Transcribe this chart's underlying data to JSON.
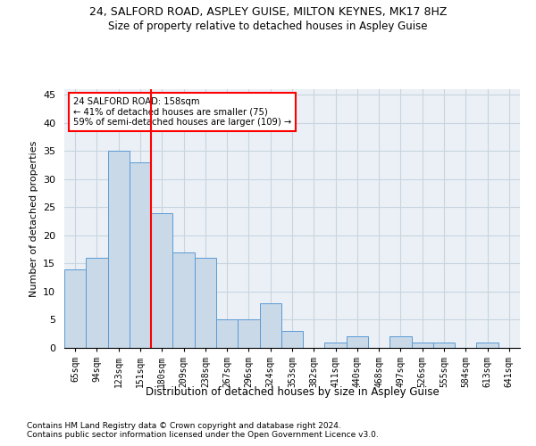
{
  "title1": "24, SALFORD ROAD, ASPLEY GUISE, MILTON KEYNES, MK17 8HZ",
  "title2": "Size of property relative to detached houses in Aspley Guise",
  "xlabel": "Distribution of detached houses by size in Aspley Guise",
  "ylabel": "Number of detached properties",
  "footnote1": "Contains HM Land Registry data © Crown copyright and database right 2024.",
  "footnote2": "Contains public sector information licensed under the Open Government Licence v3.0.",
  "bar_labels": [
    "65sqm",
    "94sqm",
    "123sqm",
    "151sqm",
    "180sqm",
    "209sqm",
    "238sqm",
    "267sqm",
    "296sqm",
    "324sqm",
    "353sqm",
    "382sqm",
    "411sqm",
    "440sqm",
    "468sqm",
    "497sqm",
    "526sqm",
    "555sqm",
    "584sqm",
    "613sqm",
    "641sqm"
  ],
  "bar_values": [
    14,
    16,
    35,
    33,
    24,
    17,
    16,
    5,
    5,
    8,
    3,
    0,
    1,
    2,
    0,
    2,
    1,
    1,
    0,
    1,
    0
  ],
  "bar_color": "#c9d9e8",
  "bar_edge_color": "#5b9bd5",
  "vline_x": 3.5,
  "vline_color": "red",
  "annotation_title": "24 SALFORD ROAD: 158sqm",
  "annotation_line1": "← 41% of detached houses are smaller (75)",
  "annotation_line2": "59% of semi-detached houses are larger (109) →",
  "annotation_box_color": "white",
  "annotation_box_edgecolor": "red",
  "ylim": [
    0,
    46
  ],
  "yticks": [
    0,
    5,
    10,
    15,
    20,
    25,
    30,
    35,
    40,
    45
  ],
  "grid_color": "#c8d4df",
  "background_color": "#eaf0f6"
}
